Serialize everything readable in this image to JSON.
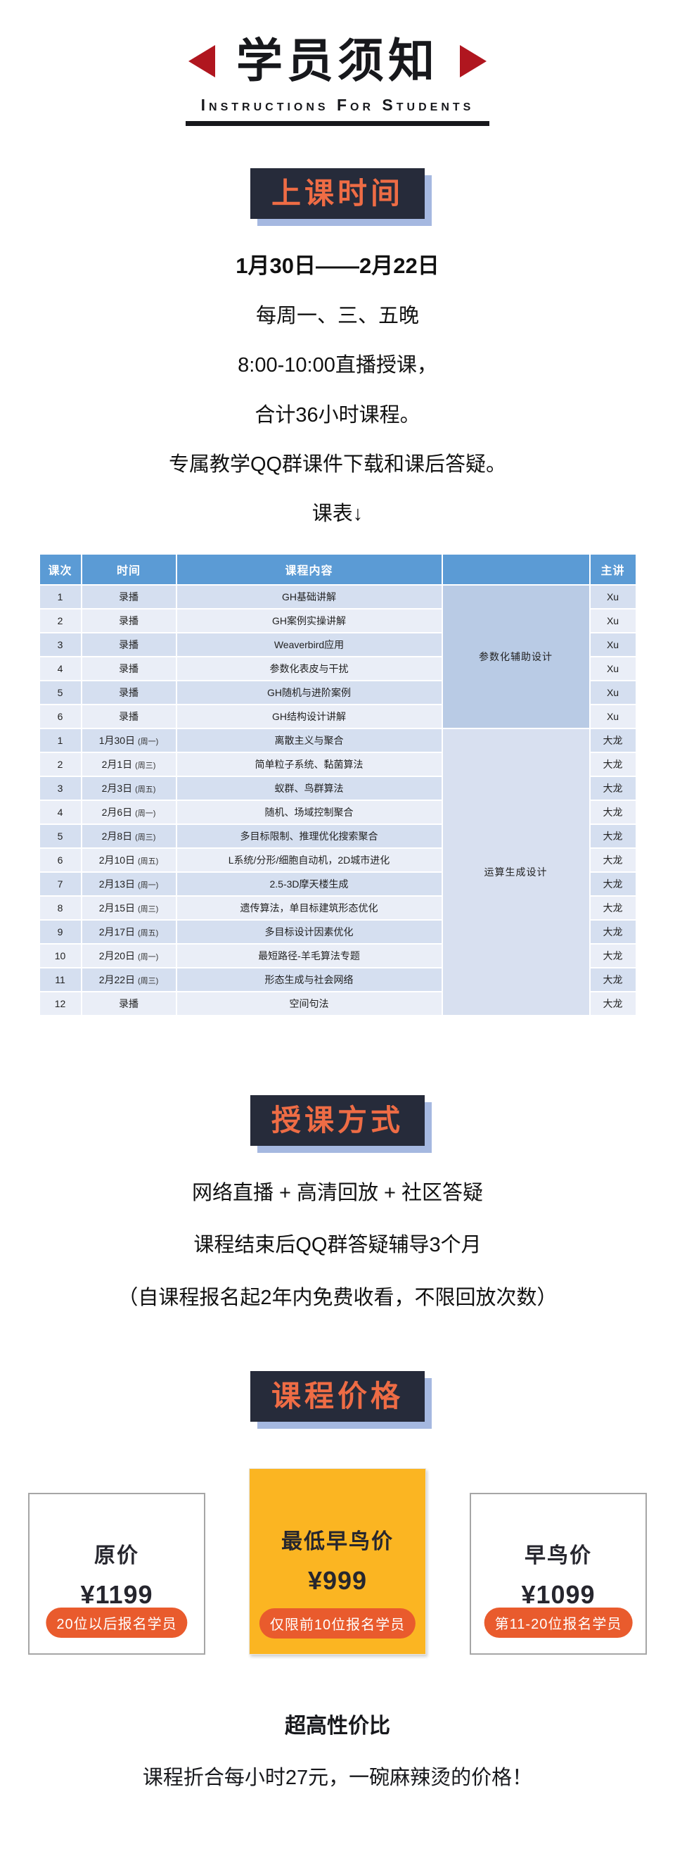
{
  "header": {
    "title": "学员须知",
    "subtitle": "Instructions For Students",
    "accent_red": "#b0161f"
  },
  "class_time": {
    "badge": "上课时间",
    "lines": [
      "1月30日——2月22日",
      "每周一、三、五晚",
      "8:00-10:00直播授课，",
      "合计36小时课程。",
      "专属教学QQ群课件下载和课后答疑。",
      "课表↓"
    ]
  },
  "table": {
    "headers": [
      "课次",
      "时间",
      "课程内容",
      "",
      "主讲"
    ],
    "header_color": "#5b9bd5",
    "recorded_group_label": "参数化辅助设计",
    "live_group_label": "运算生成设计",
    "recorded_rows": [
      {
        "no": "1",
        "time": "录播",
        "weekday": "",
        "content": "GH基础讲解",
        "teacher": "Xu"
      },
      {
        "no": "2",
        "time": "录播",
        "weekday": "",
        "content": "GH案例实操讲解",
        "teacher": "Xu"
      },
      {
        "no": "3",
        "time": "录播",
        "weekday": "",
        "content": "Weaverbird应用",
        "teacher": "Xu"
      },
      {
        "no": "4",
        "time": "录播",
        "weekday": "",
        "content": "参数化表皮与干扰",
        "teacher": "Xu"
      },
      {
        "no": "5",
        "time": "录播",
        "weekday": "",
        "content": "GH随机与进阶案例",
        "teacher": "Xu"
      },
      {
        "no": "6",
        "time": "录播",
        "weekday": "",
        "content": "GH结构设计讲解",
        "teacher": "Xu"
      }
    ],
    "live_rows": [
      {
        "no": "1",
        "time": "1月30日",
        "weekday": "(周一)",
        "content": "离散主义与聚合",
        "teacher": "大龙"
      },
      {
        "no": "2",
        "time": "2月1日",
        "weekday": "(周三)",
        "content": "简单粒子系统、黏菌算法",
        "teacher": "大龙"
      },
      {
        "no": "3",
        "time": "2月3日",
        "weekday": "(周五)",
        "content": "蚁群、鸟群算法",
        "teacher": "大龙"
      },
      {
        "no": "4",
        "time": "2月6日",
        "weekday": "(周一)",
        "content": "随机、场域控制聚合",
        "teacher": "大龙"
      },
      {
        "no": "5",
        "time": "2月8日",
        "weekday": "(周三)",
        "content": "多目标限制、推理优化搜索聚合",
        "teacher": "大龙"
      },
      {
        "no": "6",
        "time": "2月10日",
        "weekday": "(周五)",
        "content": "L系统/分形/细胞自动机，2D城市进化",
        "teacher": "大龙"
      },
      {
        "no": "7",
        "time": "2月13日",
        "weekday": "(周一)",
        "content": "2.5-3D摩天楼生成",
        "teacher": "大龙"
      },
      {
        "no": "8",
        "time": "2月15日",
        "weekday": "(周三)",
        "content": "遗传算法，单目标建筑形态优化",
        "teacher": "大龙"
      },
      {
        "no": "9",
        "time": "2月17日",
        "weekday": "(周五)",
        "content": "多目标设计因素优化",
        "teacher": "大龙"
      },
      {
        "no": "10",
        "time": "2月20日",
        "weekday": "(周一)",
        "content": "最短路径-羊毛算法专题",
        "teacher": "大龙"
      },
      {
        "no": "11",
        "time": "2月22日",
        "weekday": "(周三)",
        "content": "形态生成与社会网络",
        "teacher": "大龙"
      },
      {
        "no": "12",
        "time": "录播",
        "weekday": "",
        "content": "空间句法",
        "teacher": "大龙"
      }
    ]
  },
  "teaching": {
    "badge": "授课方式",
    "lines": [
      "网络直播 + 高清回放 + 社区答疑",
      "课程结束后QQ群答疑辅导3个月",
      "（自课程报名起2年内免费收看，不限回放次数）"
    ]
  },
  "pricing": {
    "badge": "课程价格",
    "cards": [
      {
        "title": "原价",
        "price": "¥1199",
        "pill": "20位以后报名学员",
        "highlight": false
      },
      {
        "title": "最低早鸟价",
        "price": "¥999",
        "pill": "仅限前10位报名学员",
        "highlight": true
      },
      {
        "title": "早鸟价",
        "price": "¥1099",
        "pill": "第11-20位报名学员",
        "highlight": false
      }
    ],
    "highlight_color": "#fbb522",
    "pill_color": "#e95b2d",
    "footer_title": "超高性价比",
    "footer_text": "课程折合每小时27元，一碗麻辣烫的价格！"
  }
}
